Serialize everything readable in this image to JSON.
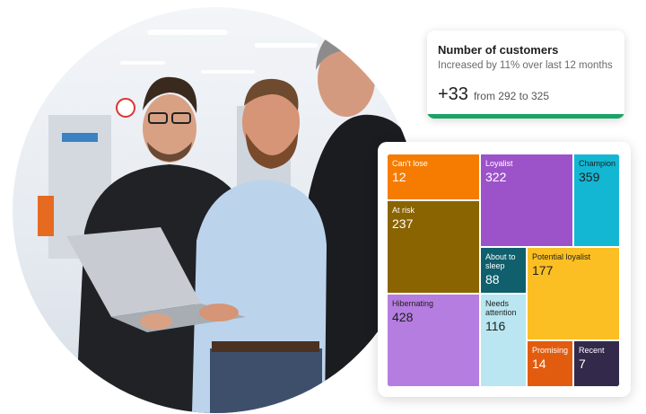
{
  "customers_card": {
    "title": "Number of customers",
    "subtitle": "Increased by 11% over last 12 months",
    "delta": "+33",
    "range": "from 292 to 325",
    "accent_color": "#1aa364"
  },
  "segments": [
    {
      "label": "Can't lose",
      "value": "12",
      "color": "#f57c00"
    },
    {
      "label": "Loyalist",
      "value": "322",
      "color": "#9c52c9"
    },
    {
      "label": "Champion",
      "value": "359",
      "color": "#14b7d3"
    },
    {
      "label": "At risk",
      "value": "237",
      "color": "#8a6400"
    },
    {
      "label": "About to sleep",
      "value": "88",
      "color": "#0f5f6c"
    },
    {
      "label": "Potential loyalist",
      "value": "177",
      "color": "#fbbf24"
    },
    {
      "label": "Hibernating",
      "value": "428",
      "color": "#b57de0"
    },
    {
      "label": "Needs attention",
      "value": "116",
      "color": "#b9e6f0"
    },
    {
      "label": "Promising",
      "value": "14",
      "color": "#e25c0f"
    },
    {
      "label": "Recent",
      "value": "7",
      "color": "#33294a"
    }
  ],
  "photo": {
    "icon": "team-photo-icon"
  }
}
